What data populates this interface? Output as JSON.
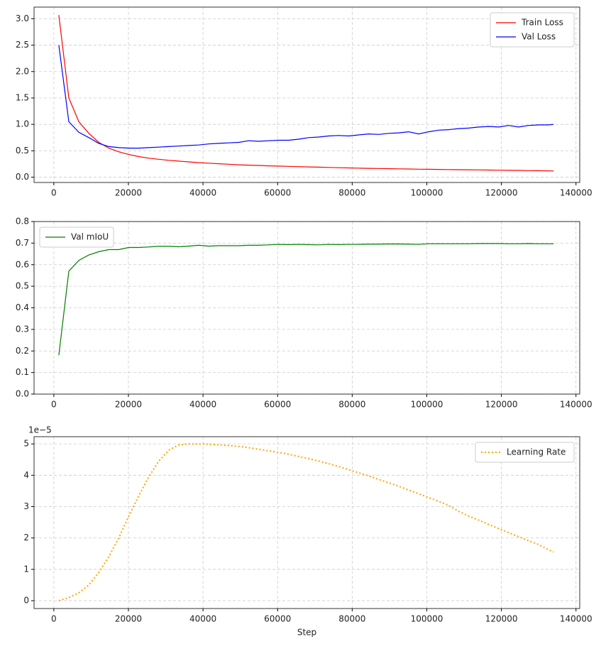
{
  "chart_data": [
    {
      "type": "line",
      "grid": true,
      "legend": "upper right",
      "xlim": [
        -5300,
        141000
      ],
      "xticks": [
        0,
        20000,
        40000,
        60000,
        80000,
        100000,
        120000,
        140000
      ],
      "ylim": [
        -0.1,
        3.22
      ],
      "yticks": [
        {
          "value": 0,
          "label": "0.0"
        },
        0.5,
        {
          "value": 1,
          "label": "1.0"
        },
        1.5,
        {
          "value": 2,
          "label": "2.0"
        },
        2.5,
        {
          "value": 3,
          "label": "3.0"
        }
      ],
      "x": [
        1340,
        4020,
        6700,
        9380,
        12060,
        14740,
        17420,
        20100,
        22780,
        25460,
        28140,
        30820,
        33500,
        36180,
        38860,
        41540,
        44220,
        46900,
        49580,
        52260,
        54940,
        57620,
        60300,
        62980,
        65660,
        68340,
        71020,
        73700,
        76380,
        79060,
        81740,
        84420,
        87100,
        89780,
        92460,
        95140,
        97820,
        100500,
        103180,
        105860,
        108540,
        111220,
        113900,
        116580,
        119260,
        121940,
        124620,
        127300,
        129980,
        132660,
        134000
      ],
      "series": [
        {
          "name": "Train Loss",
          "color": "#ff0000",
          "values": [
            3.07,
            1.5,
            1.05,
            0.83,
            0.66,
            0.55,
            0.48,
            0.43,
            0.39,
            0.36,
            0.34,
            0.32,
            0.305,
            0.29,
            0.275,
            0.265,
            0.255,
            0.245,
            0.235,
            0.228,
            0.222,
            0.215,
            0.21,
            0.205,
            0.2,
            0.195,
            0.19,
            0.185,
            0.18,
            0.175,
            0.172,
            0.168,
            0.165,
            0.162,
            0.158,
            0.155,
            0.152,
            0.15,
            0.147,
            0.145,
            0.142,
            0.14,
            0.138,
            0.135,
            0.133,
            0.13,
            0.128,
            0.125,
            0.123,
            0.12,
            0.118
          ]
        },
        {
          "name": "Val Loss",
          "color": "#0000ff",
          "values": [
            2.5,
            1.05,
            0.85,
            0.75,
            0.64,
            0.58,
            0.56,
            0.55,
            0.55,
            0.56,
            0.57,
            0.58,
            0.59,
            0.6,
            0.61,
            0.63,
            0.64,
            0.65,
            0.66,
            0.69,
            0.68,
            0.69,
            0.7,
            0.7,
            0.72,
            0.75,
            0.76,
            0.78,
            0.79,
            0.78,
            0.8,
            0.82,
            0.81,
            0.83,
            0.84,
            0.86,
            0.82,
            0.86,
            0.89,
            0.9,
            0.92,
            0.93,
            0.95,
            0.96,
            0.95,
            0.98,
            0.95,
            0.98,
            0.99,
            0.99,
            1.0
          ]
        }
      ]
    },
    {
      "type": "line",
      "grid": true,
      "legend": "upper left",
      "xlim": [
        -5300,
        141000
      ],
      "xticks": [
        0,
        20000,
        40000,
        60000,
        80000,
        100000,
        120000,
        140000
      ],
      "ylim": [
        0,
        0.8
      ],
      "yticks": [
        {
          "value": 0,
          "label": "0.0"
        },
        0.1,
        0.2,
        0.3,
        0.4,
        0.5,
        0.6,
        0.7,
        0.8
      ],
      "x": [
        1340,
        4020,
        6700,
        9380,
        12060,
        14740,
        17420,
        20100,
        22780,
        25460,
        28140,
        30820,
        33500,
        36180,
        38860,
        41540,
        44220,
        46900,
        49580,
        52260,
        54940,
        57620,
        60300,
        62980,
        65660,
        68340,
        71020,
        73700,
        76380,
        79060,
        81740,
        84420,
        87100,
        89780,
        92460,
        95140,
        97820,
        100500,
        103180,
        105860,
        108540,
        111220,
        113900,
        116580,
        119260,
        121940,
        124620,
        127300,
        129980,
        132660,
        134000
      ],
      "series": [
        {
          "name": "Val mIoU",
          "color": "#008000",
          "values": [
            0.18,
            0.57,
            0.62,
            0.645,
            0.66,
            0.67,
            0.67,
            0.68,
            0.68,
            0.682,
            0.685,
            0.685,
            0.683,
            0.686,
            0.69,
            0.686,
            0.688,
            0.688,
            0.688,
            0.69,
            0.69,
            0.692,
            0.694,
            0.693,
            0.694,
            0.693,
            0.692,
            0.694,
            0.693,
            0.694,
            0.694,
            0.695,
            0.695,
            0.696,
            0.696,
            0.695,
            0.694,
            0.697,
            0.697,
            0.697,
            0.697,
            0.697,
            0.698,
            0.698,
            0.698,
            0.697,
            0.697,
            0.698,
            0.697,
            0.697,
            0.697
          ]
        }
      ]
    },
    {
      "type": "line",
      "grid": true,
      "legend": "upper right",
      "y_offset_label": "1e−5",
      "xlabel": "Step",
      "xlim": [
        -5300,
        141000
      ],
      "xticks": [
        0,
        20000,
        40000,
        60000,
        80000,
        100000,
        120000,
        140000
      ],
      "ylim": [
        -0.25,
        5.23
      ],
      "yticks": [
        0,
        1,
        2,
        3,
        4,
        5
      ],
      "x": [
        1340,
        4020,
        6700,
        9380,
        12060,
        14740,
        17420,
        20100,
        22780,
        25460,
        28140,
        30820,
        33500,
        36180,
        38860,
        41540,
        44220,
        46900,
        49580,
        52260,
        54940,
        57620,
        60300,
        62980,
        65660,
        68340,
        71020,
        73700,
        76380,
        79060,
        81740,
        84420,
        87100,
        89780,
        92460,
        95140,
        97820,
        100500,
        103180,
        105860,
        108540,
        111220,
        113900,
        116580,
        119260,
        121940,
        124620,
        127300,
        129980,
        132660,
        134000
      ],
      "series": [
        {
          "name": "Learning Rate",
          "color": "#ffa500",
          "line_style": "dotted",
          "values": [
            0.0,
            0.1,
            0.25,
            0.5,
            0.9,
            1.4,
            2.0,
            2.7,
            3.35,
            3.95,
            4.45,
            4.8,
            4.97,
            5.0,
            5.0,
            4.99,
            4.97,
            4.95,
            4.92,
            4.88,
            4.83,
            4.78,
            4.73,
            4.67,
            4.6,
            4.53,
            4.45,
            4.37,
            4.28,
            4.18,
            4.08,
            3.98,
            3.87,
            3.76,
            3.65,
            3.53,
            3.41,
            3.29,
            3.17,
            3.04,
            2.85,
            2.7,
            2.57,
            2.43,
            2.3,
            2.17,
            2.04,
            1.91,
            1.79,
            1.62,
            1.55
          ]
        }
      ]
    }
  ]
}
